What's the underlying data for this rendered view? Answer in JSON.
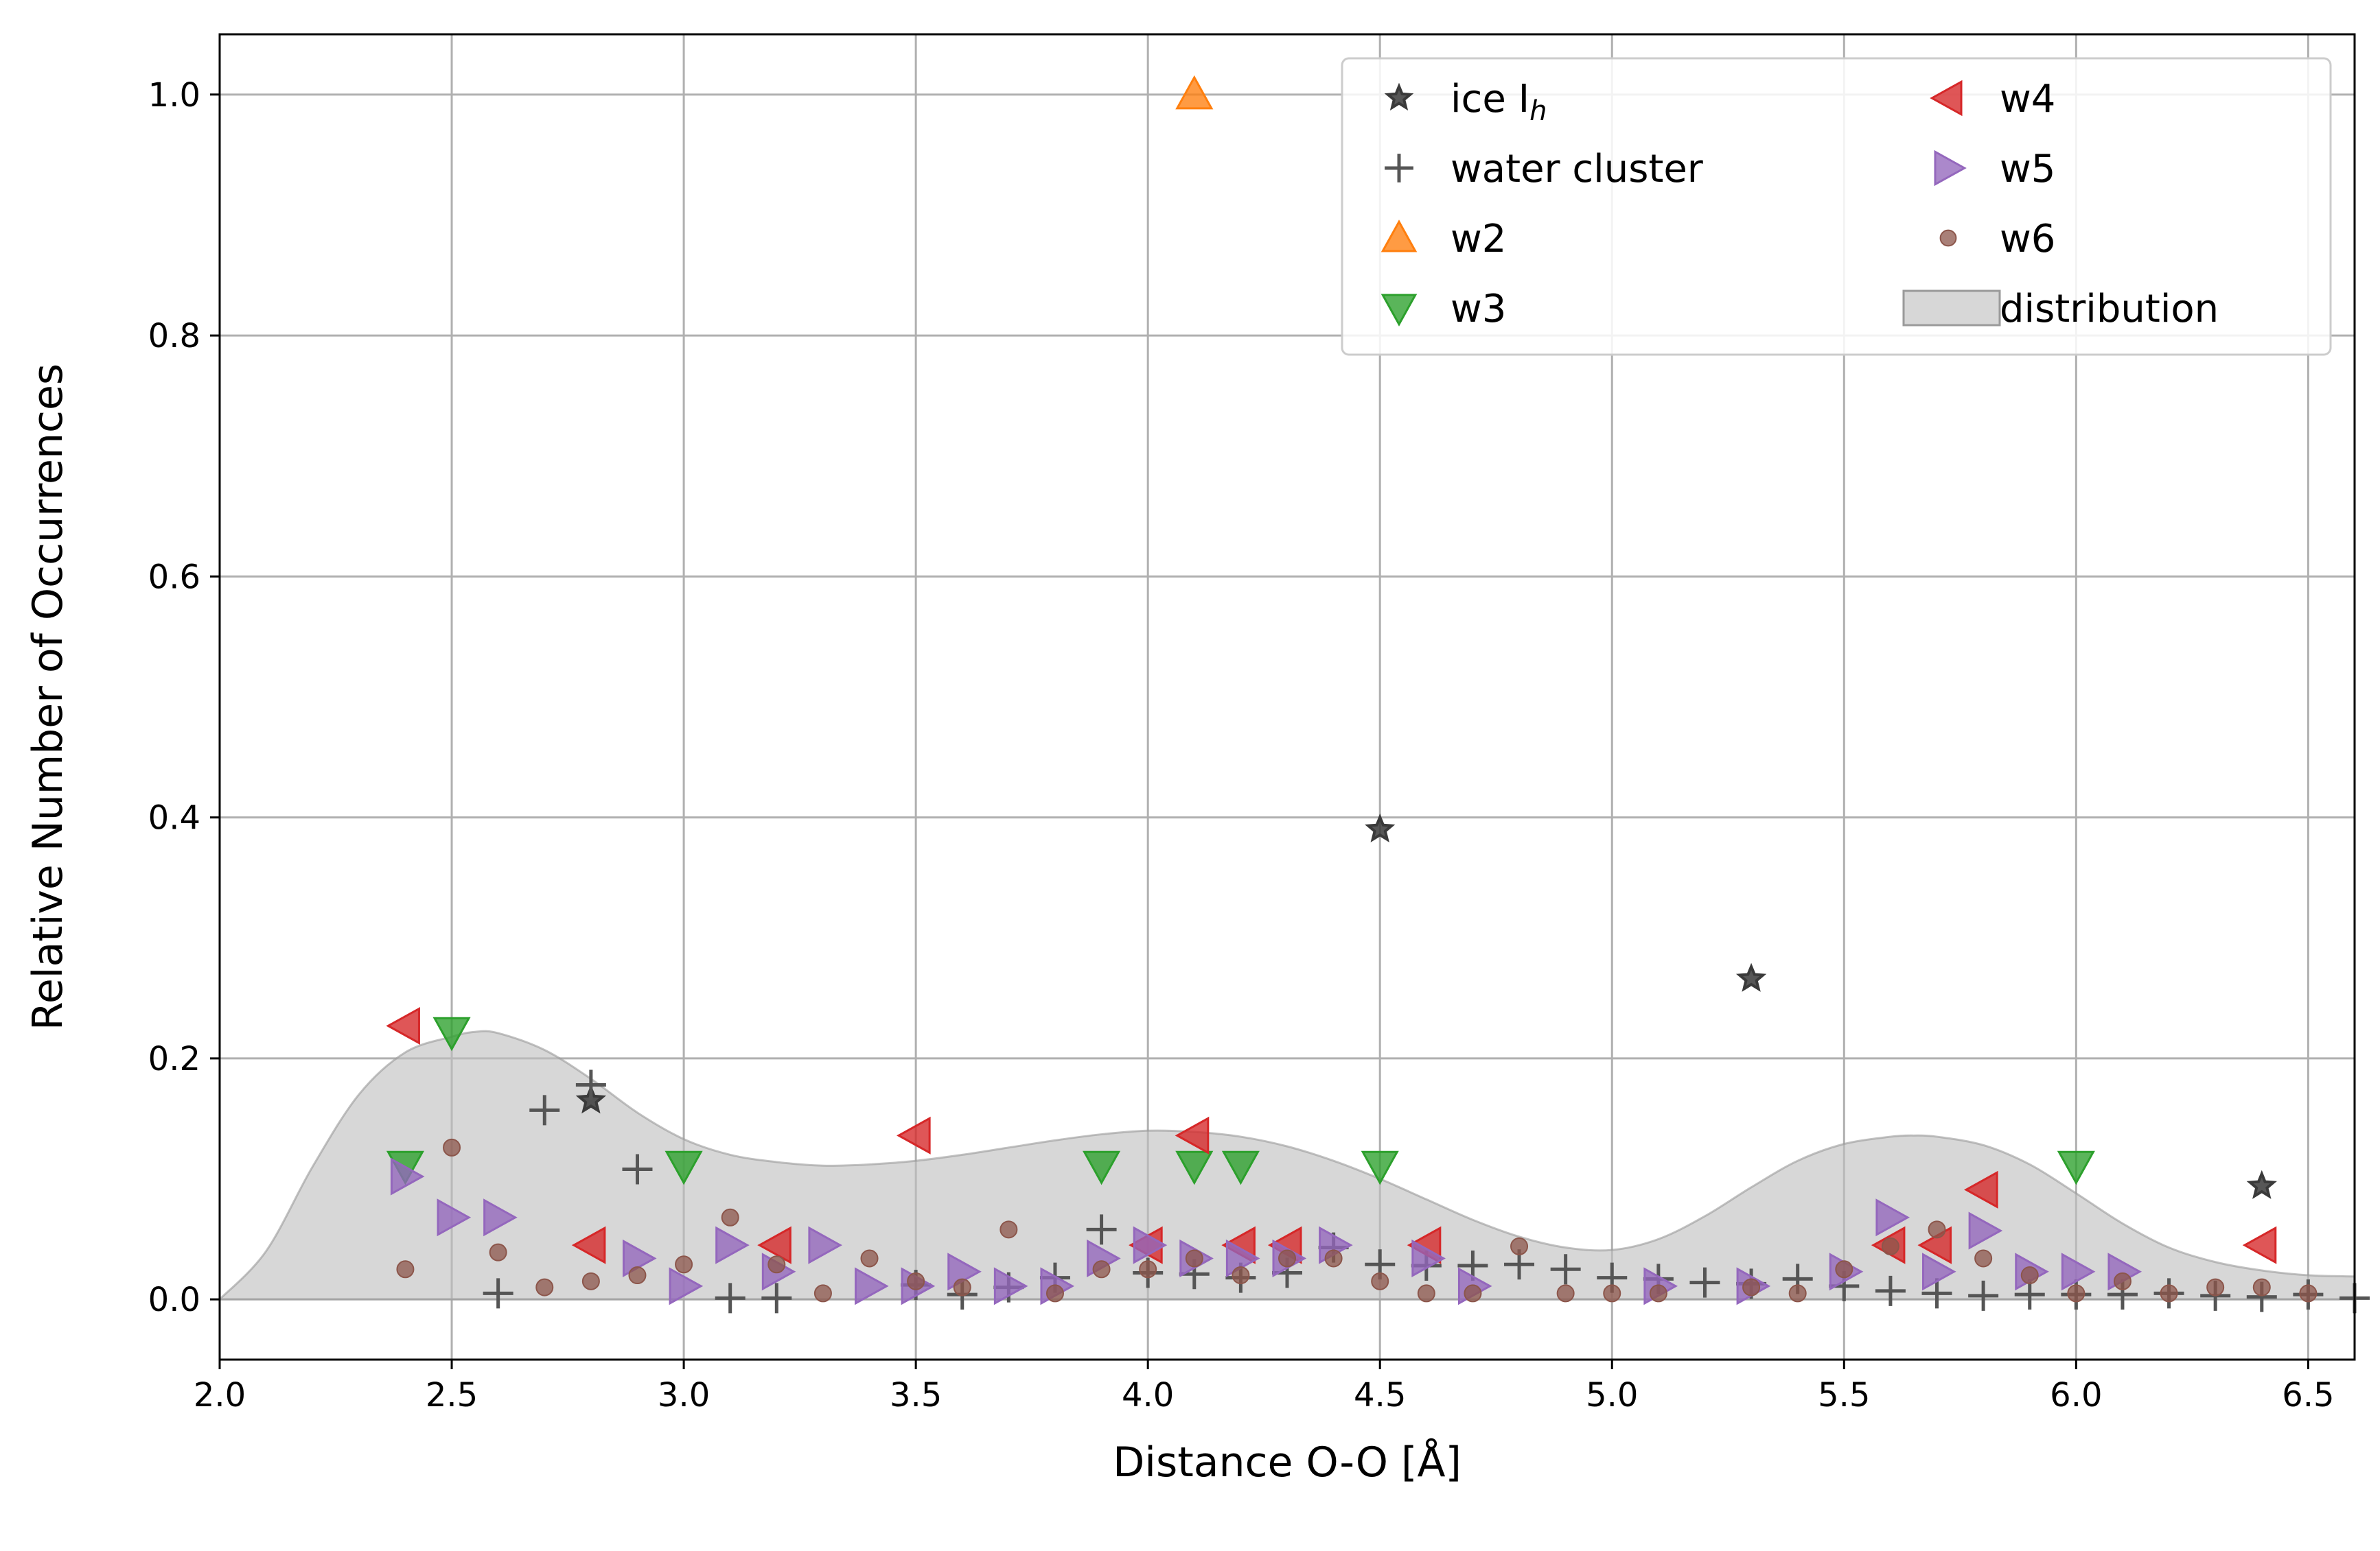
{
  "chart_data": {
    "type": "scatter",
    "xlabel": "Distance O-O [Å]",
    "ylabel": "Relative Number of Occurrences",
    "xlim": [
      2.0,
      6.6
    ],
    "ylim": [
      -0.05,
      1.05
    ],
    "xticks": [
      "2.0",
      "2.5",
      "3.0",
      "3.5",
      "4.0",
      "4.5",
      "5.0",
      "5.5",
      "6.0",
      "6.5"
    ],
    "yticks": [
      "0.0",
      "0.2",
      "0.4",
      "0.6",
      "0.8",
      "1.0"
    ],
    "grid": true,
    "legend_position": "top-right",
    "legend_columns": 2,
    "distribution": {
      "name": "distribution",
      "color": "#c0c0c0",
      "x": [
        2.0,
        2.1,
        2.2,
        2.3,
        2.4,
        2.5,
        2.55,
        2.6,
        2.7,
        2.8,
        2.9,
        3.0,
        3.1,
        3.2,
        3.3,
        3.4,
        3.5,
        3.6,
        3.7,
        3.8,
        3.9,
        4.0,
        4.1,
        4.2,
        4.3,
        4.4,
        4.5,
        4.6,
        4.7,
        4.8,
        4.9,
        5.0,
        5.1,
        5.2,
        5.3,
        5.4,
        5.5,
        5.6,
        5.65,
        5.7,
        5.8,
        5.9,
        6.0,
        6.1,
        6.2,
        6.3,
        6.4,
        6.5,
        6.6
      ],
      "y": [
        0.0,
        0.04,
        0.11,
        0.17,
        0.205,
        0.218,
        0.222,
        0.221,
        0.207,
        0.183,
        0.155,
        0.133,
        0.12,
        0.114,
        0.111,
        0.112,
        0.115,
        0.12,
        0.126,
        0.132,
        0.137,
        0.14,
        0.139,
        0.135,
        0.127,
        0.115,
        0.1,
        0.083,
        0.066,
        0.052,
        0.043,
        0.041,
        0.05,
        0.069,
        0.093,
        0.115,
        0.129,
        0.135,
        0.136,
        0.135,
        0.128,
        0.112,
        0.088,
        0.063,
        0.043,
        0.031,
        0.024,
        0.02,
        0.019
      ]
    },
    "series": [
      {
        "name": "ice I",
        "name_subscript": "h",
        "marker": "star",
        "color": "#3a3a3a",
        "x": [
          2.8,
          4.5,
          5.3,
          6.4
        ],
        "y": [
          0.165,
          0.39,
          0.266,
          0.094
        ]
      },
      {
        "name": "water cluster",
        "marker": "plus",
        "color": "#555555",
        "x": [
          2.6,
          2.7,
          2.8,
          2.9,
          3.1,
          3.2,
          3.5,
          3.6,
          3.7,
          3.8,
          3.9,
          4.0,
          4.1,
          4.2,
          4.3,
          4.4,
          4.5,
          4.6,
          4.7,
          4.8,
          4.9,
          5.0,
          5.1,
          5.2,
          5.3,
          5.4,
          5.5,
          5.6,
          5.7,
          5.8,
          5.9,
          6.0,
          6.1,
          6.2,
          6.3,
          6.4,
          6.5,
          6.6
        ],
        "y": [
          0.005,
          0.157,
          0.178,
          0.108,
          0.001,
          0.001,
          0.012,
          0.004,
          0.01,
          0.018,
          0.058,
          0.022,
          0.021,
          0.018,
          0.022,
          0.043,
          0.029,
          0.028,
          0.028,
          0.029,
          0.025,
          0.018,
          0.017,
          0.014,
          0.013,
          0.017,
          0.011,
          0.007,
          0.005,
          0.003,
          0.004,
          0.004,
          0.004,
          0.005,
          0.003,
          0.002,
          0.004,
          0.001
        ]
      },
      {
        "name": "w2",
        "marker": "triangle-up",
        "color": "#ff7f0e",
        "x": [
          4.1
        ],
        "y": [
          1.0
        ]
      },
      {
        "name": "w3",
        "marker": "triangle-down",
        "color": "#2ca02c",
        "x": [
          2.4,
          2.5,
          3.0,
          3.9,
          4.1,
          4.2,
          4.5,
          6.0
        ],
        "y": [
          0.111,
          0.222,
          0.111,
          0.111,
          0.111,
          0.111,
          0.111,
          0.111
        ]
      },
      {
        "name": "w4",
        "marker": "triangle-left",
        "color": "#d62728",
        "x": [
          2.4,
          2.8,
          3.2,
          3.5,
          4.0,
          4.1,
          4.2,
          4.3,
          4.6,
          5.6,
          5.7,
          5.8,
          6.4
        ],
        "y": [
          0.227,
          0.045,
          0.045,
          0.136,
          0.045,
          0.136,
          0.045,
          0.045,
          0.045,
          0.045,
          0.045,
          0.091,
          0.045
        ]
      },
      {
        "name": "w5",
        "marker": "triangle-right",
        "color": "#9467bd",
        "x": [
          2.4,
          2.5,
          2.6,
          2.9,
          3.0,
          3.1,
          3.2,
          3.3,
          3.4,
          3.5,
          3.6,
          3.7,
          3.8,
          3.9,
          4.0,
          4.1,
          4.2,
          4.3,
          4.4,
          4.6,
          4.7,
          5.1,
          5.3,
          5.5,
          5.6,
          5.7,
          5.8,
          5.9,
          6.0,
          6.1
        ],
        "y": [
          0.102,
          0.068,
          0.068,
          0.034,
          0.011,
          0.045,
          0.023,
          0.045,
          0.011,
          0.011,
          0.023,
          0.011,
          0.011,
          0.034,
          0.045,
          0.034,
          0.034,
          0.034,
          0.045,
          0.034,
          0.011,
          0.011,
          0.011,
          0.023,
          0.068,
          0.023,
          0.057,
          0.023,
          0.023,
          0.023
        ]
      },
      {
        "name": "w6",
        "marker": "circle",
        "color": "#8c564b",
        "x": [
          2.4,
          2.5,
          2.6,
          2.7,
          2.8,
          2.9,
          3.0,
          3.1,
          3.2,
          3.3,
          3.4,
          3.5,
          3.6,
          3.7,
          3.8,
          3.9,
          4.0,
          4.1,
          4.2,
          4.3,
          4.4,
          4.5,
          4.6,
          4.7,
          4.8,
          4.9,
          5.0,
          5.1,
          5.3,
          5.4,
          5.5,
          5.6,
          5.7,
          5.8,
          5.9,
          6.0,
          6.1,
          6.2,
          6.3,
          6.4,
          6.5
        ],
        "y": [
          0.025,
          0.126,
          0.039,
          0.01,
          0.015,
          0.02,
          0.029,
          0.068,
          0.029,
          0.005,
          0.034,
          0.015,
          0.01,
          0.058,
          0.005,
          0.025,
          0.025,
          0.034,
          0.02,
          0.034,
          0.034,
          0.015,
          0.005,
          0.005,
          0.044,
          0.005,
          0.005,
          0.005,
          0.01,
          0.005,
          0.025,
          0.044,
          0.058,
          0.034,
          0.02,
          0.005,
          0.015,
          0.005,
          0.01,
          0.01,
          0.005
        ]
      }
    ]
  }
}
